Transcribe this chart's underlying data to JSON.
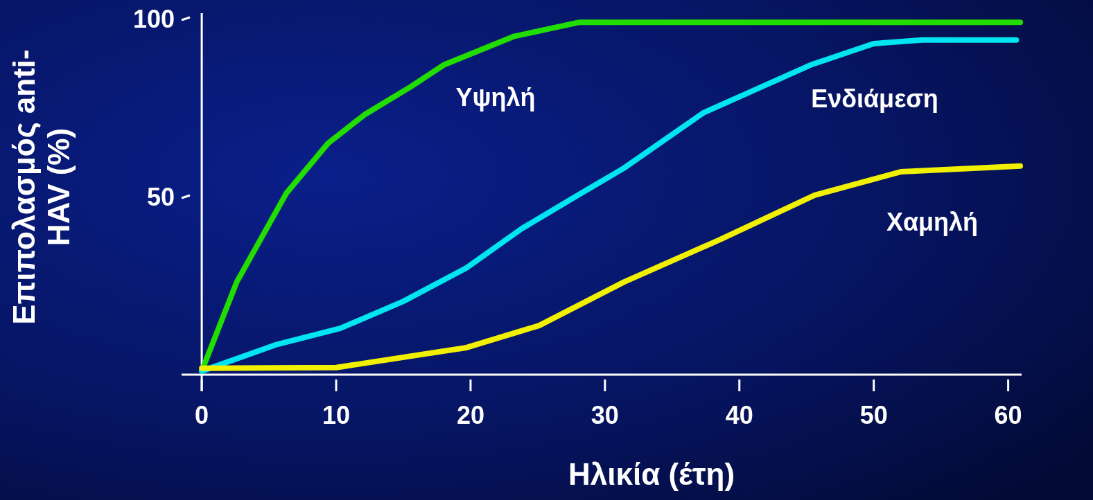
{
  "chart_data": {
    "type": "line",
    "xlabel": "Ηλικία (έτη)",
    "ylabel": "Επιπολασμός anti-\nHAV (%)",
    "xlim": [
      -1.5,
      61
    ],
    "ylim": [
      0,
      100
    ],
    "xticks": [
      0,
      10,
      20,
      30,
      40,
      50,
      60
    ],
    "yticks": [
      50,
      100
    ],
    "grid": false,
    "marker": "none",
    "line_style": "solid",
    "series": [
      {
        "name": "Υψηλή",
        "color": "#22dd00",
        "x": [
          0,
          2.6,
          6.3,
          9.4,
          12.1,
          15.6,
          18,
          23.2,
          28.1,
          60.9
        ],
        "values": [
          1,
          26,
          51,
          65,
          73,
          81,
          87,
          95,
          99,
          99
        ]
      },
      {
        "name": "Ενδιάμεση",
        "color": "#00e5f0",
        "x": [
          0,
          5.6,
          10.3,
          15,
          19.7,
          23.8,
          27.8,
          31.4,
          37.3,
          45.3,
          50,
          53.6,
          60.6
        ],
        "values": [
          1,
          8.5,
          13,
          20.6,
          30,
          41,
          50,
          58,
          73.5,
          87,
          93,
          94,
          94
        ]
      },
      {
        "name": "Χαμηλή",
        "color": "#f0f000",
        "x": [
          0,
          10,
          19.7,
          25.1,
          31.4,
          38.6,
          45.6,
          52,
          60.9
        ],
        "values": [
          1.8,
          2,
          7.6,
          13.8,
          26,
          38,
          50.4,
          57,
          58.6
        ]
      }
    ]
  }
}
